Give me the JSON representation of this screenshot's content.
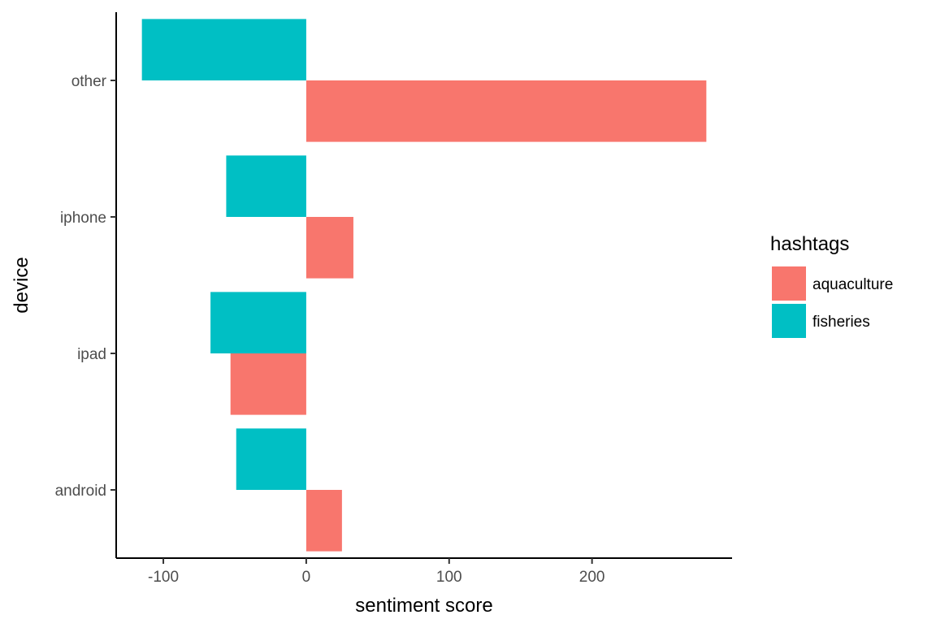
{
  "chart_data": {
    "type": "bar",
    "orientation": "horizontal",
    "grouping": "dodged",
    "categories": [
      "android",
      "ipad",
      "iphone",
      "other"
    ],
    "series": [
      {
        "name": "aquaculture",
        "color": "#F8766D",
        "values": [
          25,
          -53,
          33,
          280
        ]
      },
      {
        "name": "fisheries",
        "color": "#00BFC4",
        "values": [
          -49,
          -67,
          -56,
          -115
        ]
      }
    ],
    "xlabel": "sentiment score",
    "ylabel": "device",
    "xlim": [
      -133,
      298
    ],
    "xticks": [
      -100,
      0,
      100,
      200
    ],
    "legend": {
      "title": "hashtags",
      "position": "right"
    },
    "grid": false
  }
}
